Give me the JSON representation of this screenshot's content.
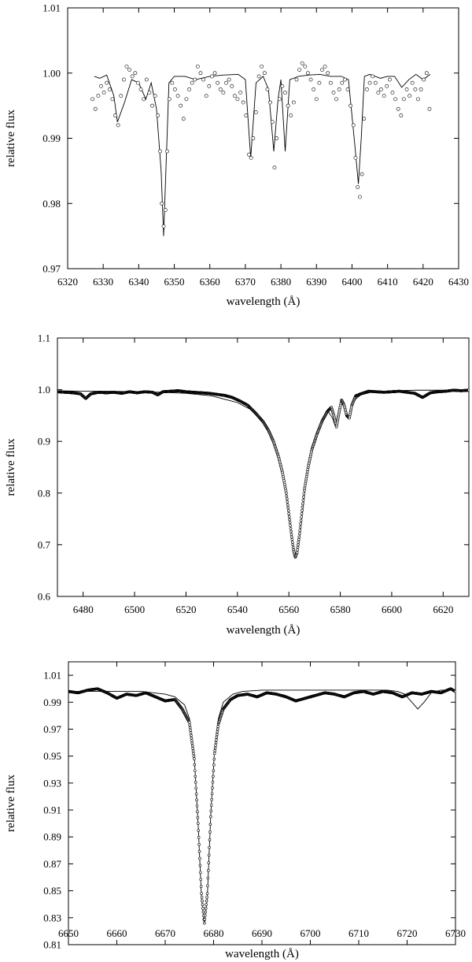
{
  "chart_data": [
    {
      "type": "line",
      "xlabel": "wavelength (Å)",
      "ylabel": "relative flux",
      "xlim": [
        6320,
        6430
      ],
      "ylim": [
        0.97,
        1.01
      ],
      "xticks": [
        6320,
        6330,
        6340,
        6350,
        6360,
        6370,
        6380,
        6390,
        6400,
        6410,
        6420,
        6430
      ],
      "yticks": [
        0.97,
        0.98,
        0.99,
        1.0,
        1.01
      ],
      "ytick_labels": [
        "0.97",
        "0.98",
        "0.99",
        "1.00",
        "1.01"
      ],
      "grid": false,
      "continuum": 1.0,
      "data_range": [
        6327,
        6422
      ],
      "series": [
        {
          "style": "solid thin line",
          "x": [
            6327.5,
            6329,
            6331,
            6333,
            6334,
            6336,
            6338,
            6340,
            6342,
            6343.5,
            6345,
            6346.3,
            6347.0,
            6347.7,
            6348.5,
            6350,
            6353,
            6356,
            6360,
            6364,
            6368,
            6370,
            6371.5,
            6373,
            6375,
            6376.5,
            6378.0,
            6379.2,
            6380,
            6381.2,
            6382.5,
            6385,
            6388,
            6391,
            6394,
            6397,
            6399,
            6400.7,
            6401.8,
            6402.6,
            6403.5,
            6405,
            6408,
            6410,
            6412,
            6414,
            6416,
            6418,
            6420,
            6422
          ],
          "y": [
            0.9995,
            0.9992,
            0.9997,
            0.9965,
            0.9925,
            0.9955,
            0.999,
            0.9985,
            0.996,
            0.9985,
            0.9945,
            0.985,
            0.975,
            0.986,
            0.9985,
            0.9995,
            0.9995,
            0.999,
            0.9995,
            0.9997,
            0.9998,
            0.999,
            0.987,
            0.9985,
            0.9995,
            0.9975,
            0.988,
            0.996,
            0.999,
            0.988,
            0.999,
            0.9995,
            0.9997,
            0.9998,
            0.9995,
            0.9995,
            0.999,
            0.9895,
            0.983,
            0.99,
            0.9995,
            0.9998,
            0.9992,
            0.9995,
            0.9995,
            0.9978,
            0.999,
            0.9998,
            0.999,
            0.9998
          ]
        },
        {
          "style": "open circles",
          "x": [
            6327,
            6327.8,
            6328.6,
            6329.4,
            6330.2,
            6331.0,
            6331.8,
            6332.6,
            6333.4,
            6334.2,
            6335.0,
            6335.8,
            6336.6,
            6337.4,
            6338.2,
            6339.0,
            6339.8,
            6340.6,
            6341.4,
            6342.2,
            6343.0,
            6343.8,
            6344.6,
            6345.4,
            6346.0,
            6346.5,
            6347.0,
            6347.5,
            6348.0,
            6348.6,
            6349.4,
            6350.2,
            6351.0,
            6351.8,
            6352.6,
            6353.4,
            6354.2,
            6355.0,
            6355.8,
            6356.6,
            6357.4,
            6358.2,
            6359.0,
            6359.8,
            6360.6,
            6361.4,
            6362.2,
            6363.0,
            6363.8,
            6364.6,
            6365.4,
            6366.2,
            6367.0,
            6367.8,
            6368.6,
            6369.4,
            6370.2,
            6371.0,
            6371.6,
            6372.2,
            6373.0,
            6373.8,
            6374.6,
            6375.4,
            6376.2,
            6377.0,
            6377.6,
            6378.2,
            6378.8,
            6379.6,
            6380.4,
            6381.2,
            6382.0,
            6382.8,
            6383.6,
            6384.4,
            6385.2,
            6386.0,
            6386.8,
            6387.6,
            6388.4,
            6389.2,
            6390.0,
            6390.8,
            6391.6,
            6392.4,
            6393.2,
            6394.0,
            6394.8,
            6395.6,
            6396.4,
            6397.2,
            6398.0,
            6398.8,
            6399.6,
            6400.4,
            6401.0,
            6401.6,
            6402.2,
            6402.8,
            6403.4,
            6404.2,
            6405.0,
            6405.8,
            6406.6,
            6407.4,
            6408.2,
            6409.0,
            6409.8,
            6410.6,
            6411.4,
            6412.2,
            6413.0,
            6413.8,
            6414.6,
            6415.4,
            6416.2,
            6417.0,
            6417.8,
            6418.6,
            6419.4,
            6420.2,
            6421.0,
            6421.8
          ],
          "y": [
            0.996,
            0.9945,
            0.9965,
            0.998,
            0.997,
            0.9985,
            0.9975,
            0.996,
            0.9935,
            0.992,
            0.9965,
            0.999,
            1.001,
            1.0005,
            0.9995,
            1.0,
            0.9985,
            0.9975,
            0.996,
            0.999,
            0.997,
            0.995,
            0.9965,
            0.9935,
            0.988,
            0.98,
            0.9765,
            0.979,
            0.988,
            0.996,
            0.9985,
            0.9975,
            0.9965,
            0.995,
            0.993,
            0.996,
            0.9975,
            0.9985,
            0.999,
            1.001,
            1.0,
            0.999,
            0.9965,
            0.998,
            0.9995,
            1.0,
            0.9985,
            0.9975,
            0.997,
            0.9985,
            0.999,
            0.998,
            0.9965,
            0.996,
            0.997,
            0.9955,
            0.9935,
            0.9875,
            0.987,
            0.99,
            0.994,
            0.9995,
            1.001,
            1.0,
            0.9975,
            0.9955,
            0.9925,
            0.9855,
            0.99,
            0.996,
            0.998,
            0.997,
            0.995,
            0.9935,
            0.9955,
            0.999,
            1.0005,
            1.0015,
            1.001,
            1.0,
            0.999,
            0.9975,
            0.996,
            0.9985,
            1.0005,
            1.001,
            1.0,
            0.9985,
            0.997,
            0.996,
            0.9975,
            0.9985,
            0.999,
            0.9975,
            0.995,
            0.992,
            0.987,
            0.9825,
            0.981,
            0.9845,
            0.993,
            0.9975,
            0.9985,
            0.9995,
            0.9985,
            0.997,
            0.9975,
            0.9965,
            0.998,
            0.999,
            0.997,
            0.996,
            0.9945,
            0.9935,
            0.996,
            0.9975,
            0.9965,
            0.9985,
            0.9975,
            0.996,
            0.9975,
            0.999,
            1.0,
            0.9945
          ]
        }
      ]
    },
    {
      "type": "line",
      "xlabel": "wavelength (Å)",
      "ylabel": "relative flux",
      "xlim": [
        6470,
        6630
      ],
      "ylim": [
        0.6,
        1.1
      ],
      "xticks": [
        6480,
        6500,
        6520,
        6540,
        6560,
        6580,
        6600,
        6620
      ],
      "yticks": [
        0.6,
        0.7,
        0.8,
        0.9,
        1.0,
        1.1
      ],
      "ytick_labels": [
        "0.6",
        "0.7",
        "0.8",
        "0.9",
        "1.0",
        "1.1"
      ],
      "grid": false,
      "continuum": 1.0,
      "line_center": 6562.8,
      "line_minimum": 0.675,
      "data_range": [
        6470,
        6630
      ],
      "series": [
        {
          "style": "solid thin line",
          "x": [
            6470,
            6480,
            6490,
            6500,
            6510,
            6520,
            6530,
            6540,
            6545,
            6550,
            6553,
            6556,
            6558,
            6560,
            6561.5,
            6562.8,
            6564,
            6565.5,
            6567,
            6569,
            6572,
            6575,
            6577,
            6578,
            6579.5,
            6581,
            6582.5,
            6583.5,
            6585,
            6588,
            6592,
            6600,
            6610,
            6620,
            6630
          ],
          "y": [
            0.998,
            0.997,
            0.997,
            0.996,
            0.995,
            0.993,
            0.988,
            0.975,
            0.962,
            0.938,
            0.912,
            0.87,
            0.828,
            0.76,
            0.705,
            0.675,
            0.705,
            0.77,
            0.84,
            0.89,
            0.93,
            0.96,
            0.945,
            0.93,
            0.962,
            0.975,
            0.955,
            0.945,
            0.978,
            0.99,
            0.995,
            0.998,
            0.999,
            0.999,
            0.999
          ]
        },
        {
          "style": "dots (dense observation)",
          "x": [
            6470,
            6473,
            6476,
            6479,
            6481,
            6483,
            6486,
            6489,
            6492,
            6495,
            6498,
            6501,
            6504,
            6507,
            6509,
            6511,
            6514,
            6517,
            6520,
            6523,
            6526,
            6529,
            6532,
            6535,
            6538,
            6541,
            6544,
            6547,
            6550,
            6552,
            6554,
            6556,
            6557.5,
            6559,
            6560,
            6561,
            6561.8,
            6562.5,
            6563.2,
            6564,
            6565,
            6566,
            6567.5,
            6569,
            6571,
            6573,
            6575,
            6576.5,
            6577.5,
            6578.5,
            6579.5,
            6580.5,
            6581.5,
            6582.5,
            6583.5,
            6584.5,
            6586,
            6588,
            6591,
            6594,
            6597,
            6600,
            6603,
            6606,
            6609,
            6612,
            6615,
            6618,
            6621,
            6624,
            6627,
            6630
          ],
          "y": [
            0.996,
            0.995,
            0.994,
            0.992,
            0.983,
            0.992,
            0.995,
            0.994,
            0.995,
            0.993,
            0.996,
            0.994,
            0.996,
            0.995,
            0.99,
            0.996,
            0.997,
            0.998,
            0.996,
            0.995,
            0.994,
            0.993,
            0.991,
            0.989,
            0.985,
            0.978,
            0.97,
            0.955,
            0.938,
            0.922,
            0.9,
            0.87,
            0.84,
            0.8,
            0.76,
            0.72,
            0.69,
            0.676,
            0.685,
            0.715,
            0.76,
            0.805,
            0.85,
            0.885,
            0.915,
            0.94,
            0.958,
            0.966,
            0.95,
            0.928,
            0.955,
            0.98,
            0.97,
            0.95,
            0.945,
            0.97,
            0.988,
            0.992,
            0.997,
            0.996,
            0.995,
            0.996,
            0.997,
            0.995,
            0.993,
            0.985,
            0.994,
            0.996,
            0.997,
            0.999,
            0.998,
            0.999
          ]
        }
      ]
    },
    {
      "type": "line",
      "xlabel": "wavelength (Å)",
      "ylabel": "relative flux",
      "xlim": [
        6650,
        6730
      ],
      "ylim": [
        0.81,
        1.02
      ],
      "xticks": [
        6650,
        6660,
        6670,
        6680,
        6690,
        6700,
        6710,
        6720,
        6730
      ],
      "yticks": [
        0.81,
        0.83,
        0.85,
        0.87,
        0.89,
        0.91,
        0.93,
        0.95,
        0.97,
        0.99,
        1.01
      ],
      "ytick_labels": [
        "0.81",
        "0.83",
        "0.85",
        "0.87",
        "0.89",
        "0.91",
        "0.93",
        "0.95",
        "0.97",
        "0.99",
        "1.01"
      ],
      "grid": false,
      "continuum": 1.0,
      "line_center": 6678.1,
      "line_minimum": 0.825,
      "data_range": [
        6650,
        6730
      ],
      "series": [
        {
          "style": "solid thin line",
          "x": [
            6650,
            6655,
            6660,
            6665,
            6670,
            6672,
            6674,
            6675,
            6676,
            6676.8,
            6677.5,
            6678.1,
            6678.7,
            6679.4,
            6680.2,
            6681,
            6682,
            6684,
            6686,
            6690,
            6700,
            6710,
            6716,
            6718,
            6719.5,
            6721,
            6722.2,
            6723.5,
            6725,
            6727,
            6730
          ],
          "y": [
            0.998,
            0.998,
            0.998,
            0.998,
            0.996,
            0.994,
            0.988,
            0.978,
            0.95,
            0.9,
            0.845,
            0.825,
            0.845,
            0.905,
            0.955,
            0.978,
            0.99,
            0.996,
            0.998,
            0.999,
            0.999,
            0.999,
            0.999,
            0.998,
            0.996,
            0.99,
            0.985,
            0.99,
            0.997,
            0.999,
            0.999
          ]
        },
        {
          "style": "dots (dense observation)",
          "x": [
            6650,
            6652,
            6654,
            6656,
            6658,
            6660,
            6662,
            6664,
            6666,
            6668,
            6670,
            6672,
            6673.5,
            6675,
            6676,
            6676.8,
            6677.5,
            6678.1,
            6678.7,
            6679.4,
            6680.2,
            6681,
            6682,
            6683.5,
            6685,
            6687,
            6689,
            6691,
            6693,
            6695,
            6697,
            6699,
            6701,
            6703,
            6705,
            6707,
            6709,
            6711,
            6713,
            6715,
            6717,
            6719,
            6721,
            6723,
            6725,
            6727,
            6729,
            6730
          ],
          "y": [
            0.998,
            0.997,
            0.999,
            1.0,
            0.997,
            0.993,
            0.996,
            0.995,
            0.997,
            0.994,
            0.991,
            0.992,
            0.985,
            0.975,
            0.948,
            0.9,
            0.848,
            0.826,
            0.848,
            0.905,
            0.952,
            0.974,
            0.985,
            0.992,
            0.995,
            0.996,
            0.994,
            0.997,
            0.996,
            0.994,
            0.991,
            0.993,
            0.995,
            0.997,
            0.996,
            0.994,
            0.997,
            0.998,
            0.996,
            0.998,
            0.997,
            0.994,
            0.997,
            0.996,
            0.998,
            0.997,
            1.0,
            0.998
          ]
        }
      ]
    }
  ]
}
